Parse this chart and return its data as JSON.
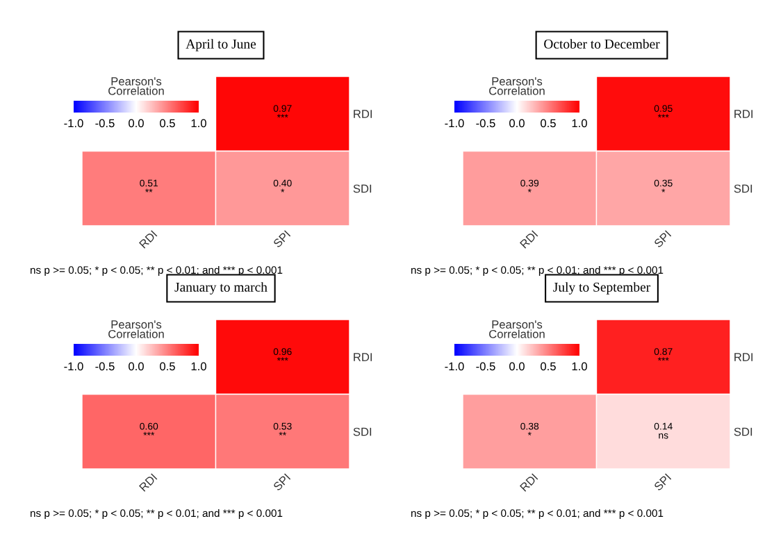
{
  "chart_data": [
    {
      "type": "heatmap",
      "title": "April to June",
      "categories": [
        "RDI",
        "SPI"
      ],
      "y_categories": [
        "RDI",
        "SDI"
      ],
      "cells": [
        [
          null,
          0.97
        ],
        [
          0.51,
          0.4
        ]
      ],
      "cell_labels": [
        [
          null,
          "0.97\n***"
        ],
        [
          "0.51\n**",
          "0.40\n*"
        ]
      ],
      "clim": [
        -1,
        1
      ],
      "cticks": [
        {
          "value": -1,
          "label": "-1.0"
        },
        {
          "value": -0.5,
          "label": "-0.5"
        },
        {
          "value": 0,
          "label": "0.0"
        },
        {
          "value": 0.5,
          "label": "0.5"
        },
        {
          "value": 1,
          "label": "1.0"
        }
      ],
      "clabel": "Pearson's\nCorrelation",
      "annotations": [
        "ns p >= 0.05; * p < 0.05; ** p < 0.01; and *** p < 0.001"
      ]
    },
    {
      "type": "heatmap",
      "title": "October to December",
      "categories": [
        "RDI",
        "SPI"
      ],
      "y_categories": [
        "RDI",
        "SDI"
      ],
      "cells": [
        [
          null,
          0.95
        ],
        [
          0.39,
          0.35
        ]
      ],
      "cell_labels": [
        [
          null,
          "0.95\n***"
        ],
        [
          "0.39\n*",
          "0.35\n*"
        ]
      ],
      "clim": [
        -1,
        1
      ],
      "cticks": [
        {
          "value": -1,
          "label": "-1.0"
        },
        {
          "value": -0.5,
          "label": "-0.5"
        },
        {
          "value": 0,
          "label": "0.0"
        },
        {
          "value": 0.5,
          "label": "0.5"
        },
        {
          "value": 1,
          "label": "1.0"
        }
      ],
      "clabel": "Pearson's\nCorrelation",
      "annotations": [
        "ns p >= 0.05; * p < 0.05; ** p < 0.01; and *** p < 0.001"
      ]
    },
    {
      "type": "heatmap",
      "title": "January to march",
      "categories": [
        "RDI",
        "SPI"
      ],
      "y_categories": [
        "RDI",
        "SDI"
      ],
      "cells": [
        [
          null,
          0.96
        ],
        [
          0.6,
          0.53
        ]
      ],
      "cell_labels": [
        [
          null,
          "0.96\n***"
        ],
        [
          "0.60\n***",
          "0.53\n**"
        ]
      ],
      "clim": [
        -1,
        1
      ],
      "cticks": [
        {
          "value": -1,
          "label": "-1.0"
        },
        {
          "value": -0.5,
          "label": "-0.5"
        },
        {
          "value": 0,
          "label": "0.0"
        },
        {
          "value": 0.5,
          "label": "0.5"
        },
        {
          "value": 1,
          "label": "1.0"
        }
      ],
      "clabel": "Pearson's\nCorrelation",
      "annotations": [
        "ns p >= 0.05; * p < 0.05; ** p < 0.01; and *** p < 0.001"
      ]
    },
    {
      "type": "heatmap",
      "title": "July to September",
      "categories": [
        "RDI",
        "SPI"
      ],
      "y_categories": [
        "RDI",
        "SDI"
      ],
      "cells": [
        [
          null,
          0.87
        ],
        [
          0.38,
          0.14
        ]
      ],
      "cell_labels": [
        [
          null,
          "0.87\n***"
        ],
        [
          "0.38\n*",
          "0.14\nns"
        ]
      ],
      "clim": [
        -1,
        1
      ],
      "cticks": [
        {
          "value": -1,
          "label": "-1.0"
        },
        {
          "value": -0.5,
          "label": "-0.5"
        },
        {
          "value": 0,
          "label": "0.0"
        },
        {
          "value": 0.5,
          "label": "0.5"
        },
        {
          "value": 1,
          "label": "1.0"
        }
      ],
      "clabel": "Pearson's\nCorrelation",
      "annotations": [
        "ns p >= 0.05; * p < 0.05; ** p < 0.01; and *** p < 0.001"
      ]
    }
  ]
}
